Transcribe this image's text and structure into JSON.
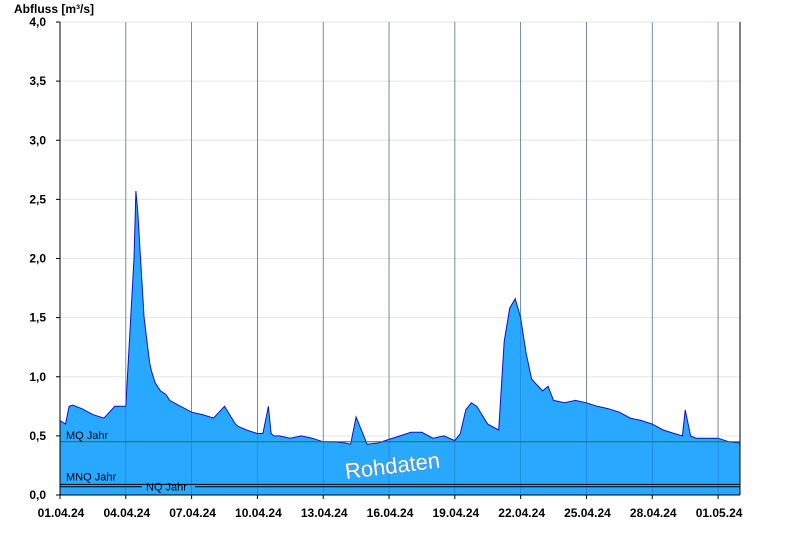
{
  "chart_data": {
    "type": "area",
    "ylabel": "Abfluss [m³/s]",
    "ylim": [
      0,
      4.0
    ],
    "xlim": [
      "2024-04-01",
      "2024-05-02"
    ],
    "y_ticks": [
      "0,0",
      "0,5",
      "1,0",
      "1,5",
      "2,0",
      "2,5",
      "3,0",
      "3,5",
      "4,0"
    ],
    "x_ticks": [
      "01.04.24",
      "04.04.24",
      "07.04.24",
      "10.04.24",
      "13.04.24",
      "16.04.24",
      "19.04.24",
      "22.04.24",
      "25.04.24",
      "28.04.24",
      "01.05.24"
    ],
    "grid": true,
    "fill_color": "#29a8ff",
    "line_color": "#1010c0",
    "watermark": "Rohdaten",
    "reference_lines": [
      {
        "label": "MQ Jahr",
        "value": 0.45,
        "color": "#1f7a1f"
      },
      {
        "label": "MNQ Jahr",
        "value": 0.09,
        "color": "#000000"
      },
      {
        "label": "NQ Jahr",
        "value": 0.07,
        "color": "#000000"
      }
    ],
    "series": [
      {
        "x": [
          "2024-04-01 00:00",
          "2024-04-01 06:00",
          "2024-04-01 10:00",
          "2024-04-01 14:00",
          "2024-04-02 00:00",
          "2024-04-02 12:00",
          "2024-04-03 00:00",
          "2024-04-03 06:00",
          "2024-04-03 12:00",
          "2024-04-03 18:00",
          "2024-04-04 00:00",
          "2024-04-04 09:00",
          "2024-04-04 11:00",
          "2024-04-04 13:00",
          "2024-04-04 20:00",
          "2024-04-05 00:00",
          "2024-04-05 02:00",
          "2024-04-05 04:00",
          "2024-04-05 08:00",
          "2024-04-05 14:00",
          "2024-04-05 20:00",
          "2024-04-06 00:00",
          "2024-04-06 12:00",
          "2024-04-07 00:00",
          "2024-04-07 12:00",
          "2024-04-08 00:00",
          "2024-04-08 12:00",
          "2024-04-09 00:00",
          "2024-04-09 03:00",
          "2024-04-09 06:00",
          "2024-04-09 12:00",
          "2024-04-10 00:00",
          "2024-04-10 06:00",
          "2024-04-10 12:00",
          "2024-04-10 15:00",
          "2024-04-10 18:00",
          "2024-04-11 00:00",
          "2024-04-11 12:00",
          "2024-04-12 00:00",
          "2024-04-12 12:00",
          "2024-04-13 00:00",
          "2024-04-13 12:00",
          "2024-04-14 00:00",
          "2024-04-14 06:00",
          "2024-04-14 12:00",
          "2024-04-15 00:00",
          "2024-04-15 12:00",
          "2024-04-16 00:00",
          "2024-04-16 12:00",
          "2024-04-17 00:00",
          "2024-04-17 12:00",
          "2024-04-18 00:00",
          "2024-04-18 12:00",
          "2024-04-19 00:00",
          "2024-04-19 06:00",
          "2024-04-19 12:00",
          "2024-04-19 18:00",
          "2024-04-20 00:00",
          "2024-04-20 12:00",
          "2024-04-21 00:00",
          "2024-04-21 06:00",
          "2024-04-21 12:00",
          "2024-04-21 18:00",
          "2024-04-22 00:00",
          "2024-04-22 06:00",
          "2024-04-22 12:00",
          "2024-04-23 00:00",
          "2024-04-23 06:00",
          "2024-04-23 12:00",
          "2024-04-24 00:00",
          "2024-04-24 12:00",
          "2024-04-25 00:00",
          "2024-04-25 12:00",
          "2024-04-26 00:00",
          "2024-04-26 12:00",
          "2024-04-27 00:00",
          "2024-04-27 12:00",
          "2024-04-28 00:00",
          "2024-04-28 12:00",
          "2024-04-29 00:00",
          "2024-04-29 09:00",
          "2024-04-29 12:00",
          "2024-04-29 18:00",
          "2024-04-30 00:00",
          "2024-04-30 12:00",
          "2024-05-01 00:00",
          "2024-05-01 12:00",
          "2024-05-02 00:00"
        ],
        "y": [
          0.63,
          0.6,
          0.75,
          0.76,
          0.73,
          0.68,
          0.65,
          0.7,
          0.75,
          0.75,
          0.75,
          2.0,
          2.57,
          2.4,
          1.5,
          1.25,
          1.12,
          1.05,
          0.95,
          0.88,
          0.85,
          0.8,
          0.75,
          0.7,
          0.68,
          0.65,
          0.75,
          0.6,
          0.58,
          0.57,
          0.55,
          0.52,
          0.52,
          0.75,
          0.52,
          0.5,
          0.5,
          0.48,
          0.5,
          0.48,
          0.45,
          0.45,
          0.44,
          0.43,
          0.66,
          0.43,
          0.44,
          0.47,
          0.5,
          0.53,
          0.53,
          0.48,
          0.5,
          0.46,
          0.52,
          0.72,
          0.78,
          0.75,
          0.6,
          0.55,
          1.3,
          1.58,
          1.66,
          1.5,
          1.2,
          0.98,
          0.88,
          0.92,
          0.8,
          0.78,
          0.8,
          0.78,
          0.75,
          0.73,
          0.7,
          0.65,
          0.63,
          0.6,
          0.55,
          0.52,
          0.5,
          0.72,
          0.5,
          0.48,
          0.48,
          0.48,
          0.45,
          0.44
        ]
      }
    ]
  }
}
